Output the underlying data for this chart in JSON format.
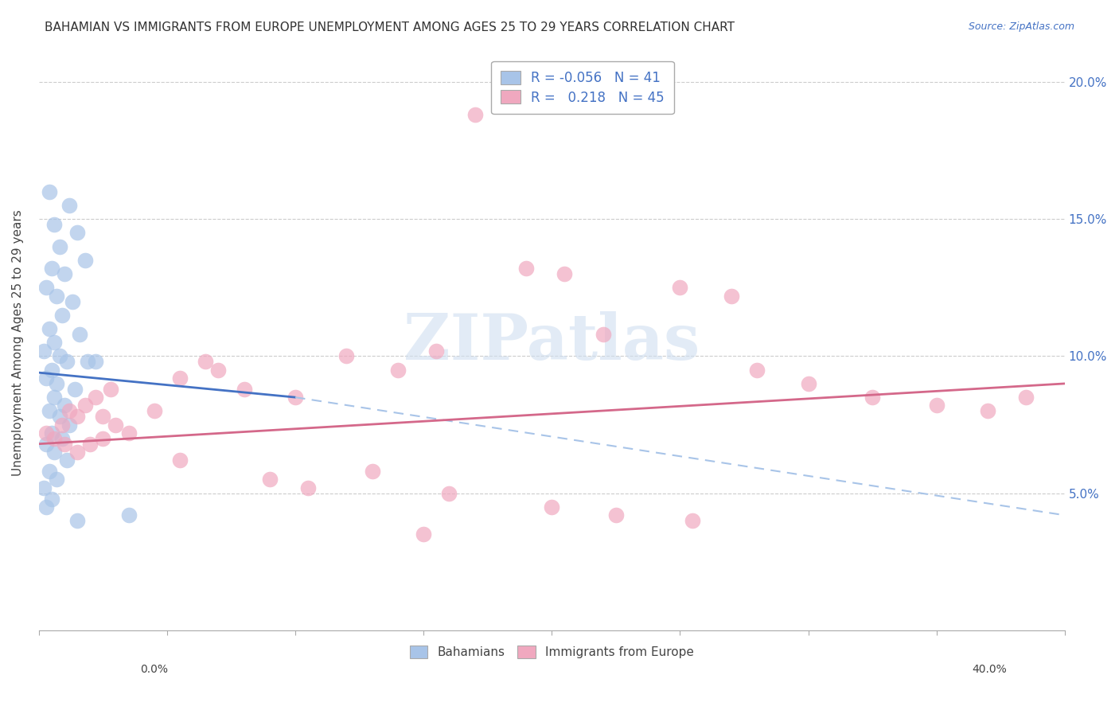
{
  "title": "BAHAMIAN VS IMMIGRANTS FROM EUROPE UNEMPLOYMENT AMONG AGES 25 TO 29 YEARS CORRELATION CHART",
  "source": "Source: ZipAtlas.com",
  "ylabel": "Unemployment Among Ages 25 to 29 years",
  "legend_blue_r": "-0.056",
  "legend_blue_n": "41",
  "legend_pink_r": "0.218",
  "legend_pink_n": "45",
  "blue_color": "#a8c4e8",
  "pink_color": "#f0a8bf",
  "blue_line_color": "#4472c4",
  "pink_line_color": "#d4688a",
  "blue_dash_color": "#a8c4e8",
  "blue_scatter": [
    [
      0.4,
      16.0
    ],
    [
      1.2,
      15.5
    ],
    [
      0.6,
      14.8
    ],
    [
      1.5,
      14.5
    ],
    [
      0.8,
      14.0
    ],
    [
      1.8,
      13.5
    ],
    [
      0.5,
      13.2
    ],
    [
      1.0,
      13.0
    ],
    [
      0.3,
      12.5
    ],
    [
      0.7,
      12.2
    ],
    [
      1.3,
      12.0
    ],
    [
      0.9,
      11.5
    ],
    [
      0.4,
      11.0
    ],
    [
      1.6,
      10.8
    ],
    [
      0.6,
      10.5
    ],
    [
      0.2,
      10.2
    ],
    [
      0.8,
      10.0
    ],
    [
      1.1,
      9.8
    ],
    [
      0.5,
      9.5
    ],
    [
      1.9,
      9.8
    ],
    [
      0.3,
      9.2
    ],
    [
      0.7,
      9.0
    ],
    [
      1.4,
      8.8
    ],
    [
      0.6,
      8.5
    ],
    [
      1.0,
      8.2
    ],
    [
      0.4,
      8.0
    ],
    [
      0.8,
      7.8
    ],
    [
      1.2,
      7.5
    ],
    [
      0.5,
      7.2
    ],
    [
      0.9,
      7.0
    ],
    [
      0.3,
      6.8
    ],
    [
      0.6,
      6.5
    ],
    [
      1.1,
      6.2
    ],
    [
      0.4,
      5.8
    ],
    [
      0.7,
      5.5
    ],
    [
      0.2,
      5.2
    ],
    [
      0.5,
      4.8
    ],
    [
      3.5,
      4.2
    ],
    [
      1.5,
      4.0
    ],
    [
      0.3,
      4.5
    ],
    [
      2.2,
      9.8
    ]
  ],
  "pink_scatter": [
    [
      0.3,
      7.2
    ],
    [
      0.6,
      7.0
    ],
    [
      0.9,
      7.5
    ],
    [
      1.2,
      8.0
    ],
    [
      1.5,
      7.8
    ],
    [
      1.8,
      8.2
    ],
    [
      2.2,
      8.5
    ],
    [
      2.5,
      7.8
    ],
    [
      2.8,
      8.8
    ],
    [
      1.0,
      6.8
    ],
    [
      1.5,
      6.5
    ],
    [
      2.0,
      6.8
    ],
    [
      2.5,
      7.0
    ],
    [
      3.0,
      7.5
    ],
    [
      3.5,
      7.2
    ],
    [
      4.5,
      8.0
    ],
    [
      5.5,
      9.2
    ],
    [
      6.5,
      9.8
    ],
    [
      7.0,
      9.5
    ],
    [
      8.0,
      8.8
    ],
    [
      10.0,
      8.5
    ],
    [
      12.0,
      10.0
    ],
    [
      14.0,
      9.5
    ],
    [
      15.5,
      10.2
    ],
    [
      17.0,
      18.8
    ],
    [
      19.0,
      13.2
    ],
    [
      20.5,
      13.0
    ],
    [
      22.0,
      10.8
    ],
    [
      25.0,
      12.5
    ],
    [
      27.0,
      12.2
    ],
    [
      28.0,
      9.5
    ],
    [
      30.0,
      9.0
    ],
    [
      32.5,
      8.5
    ],
    [
      35.0,
      8.2
    ],
    [
      37.0,
      8.0
    ],
    [
      38.5,
      8.5
    ],
    [
      9.0,
      5.5
    ],
    [
      10.5,
      5.2
    ],
    [
      13.0,
      5.8
    ],
    [
      16.0,
      5.0
    ],
    [
      20.0,
      4.5
    ],
    [
      22.5,
      4.2
    ],
    [
      25.5,
      4.0
    ],
    [
      15.0,
      3.5
    ],
    [
      5.5,
      6.2
    ]
  ],
  "xmin": 0.0,
  "xmax": 40.0,
  "ymin": 0.0,
  "ymax": 21.0,
  "blue_line_x0": 0.0,
  "blue_line_y0": 9.4,
  "blue_line_x1": 10.0,
  "blue_line_y1": 8.5,
  "blue_dash_x0": 10.0,
  "blue_dash_y0": 8.5,
  "blue_dash_x1": 40.0,
  "blue_dash_y1": 4.2,
  "pink_line_x0": 0.0,
  "pink_line_y0": 6.8,
  "pink_line_x1": 40.0,
  "pink_line_y1": 9.0,
  "watermark_text": "ZIPatlas",
  "background_color": "#ffffff",
  "grid_color": "#cccccc"
}
